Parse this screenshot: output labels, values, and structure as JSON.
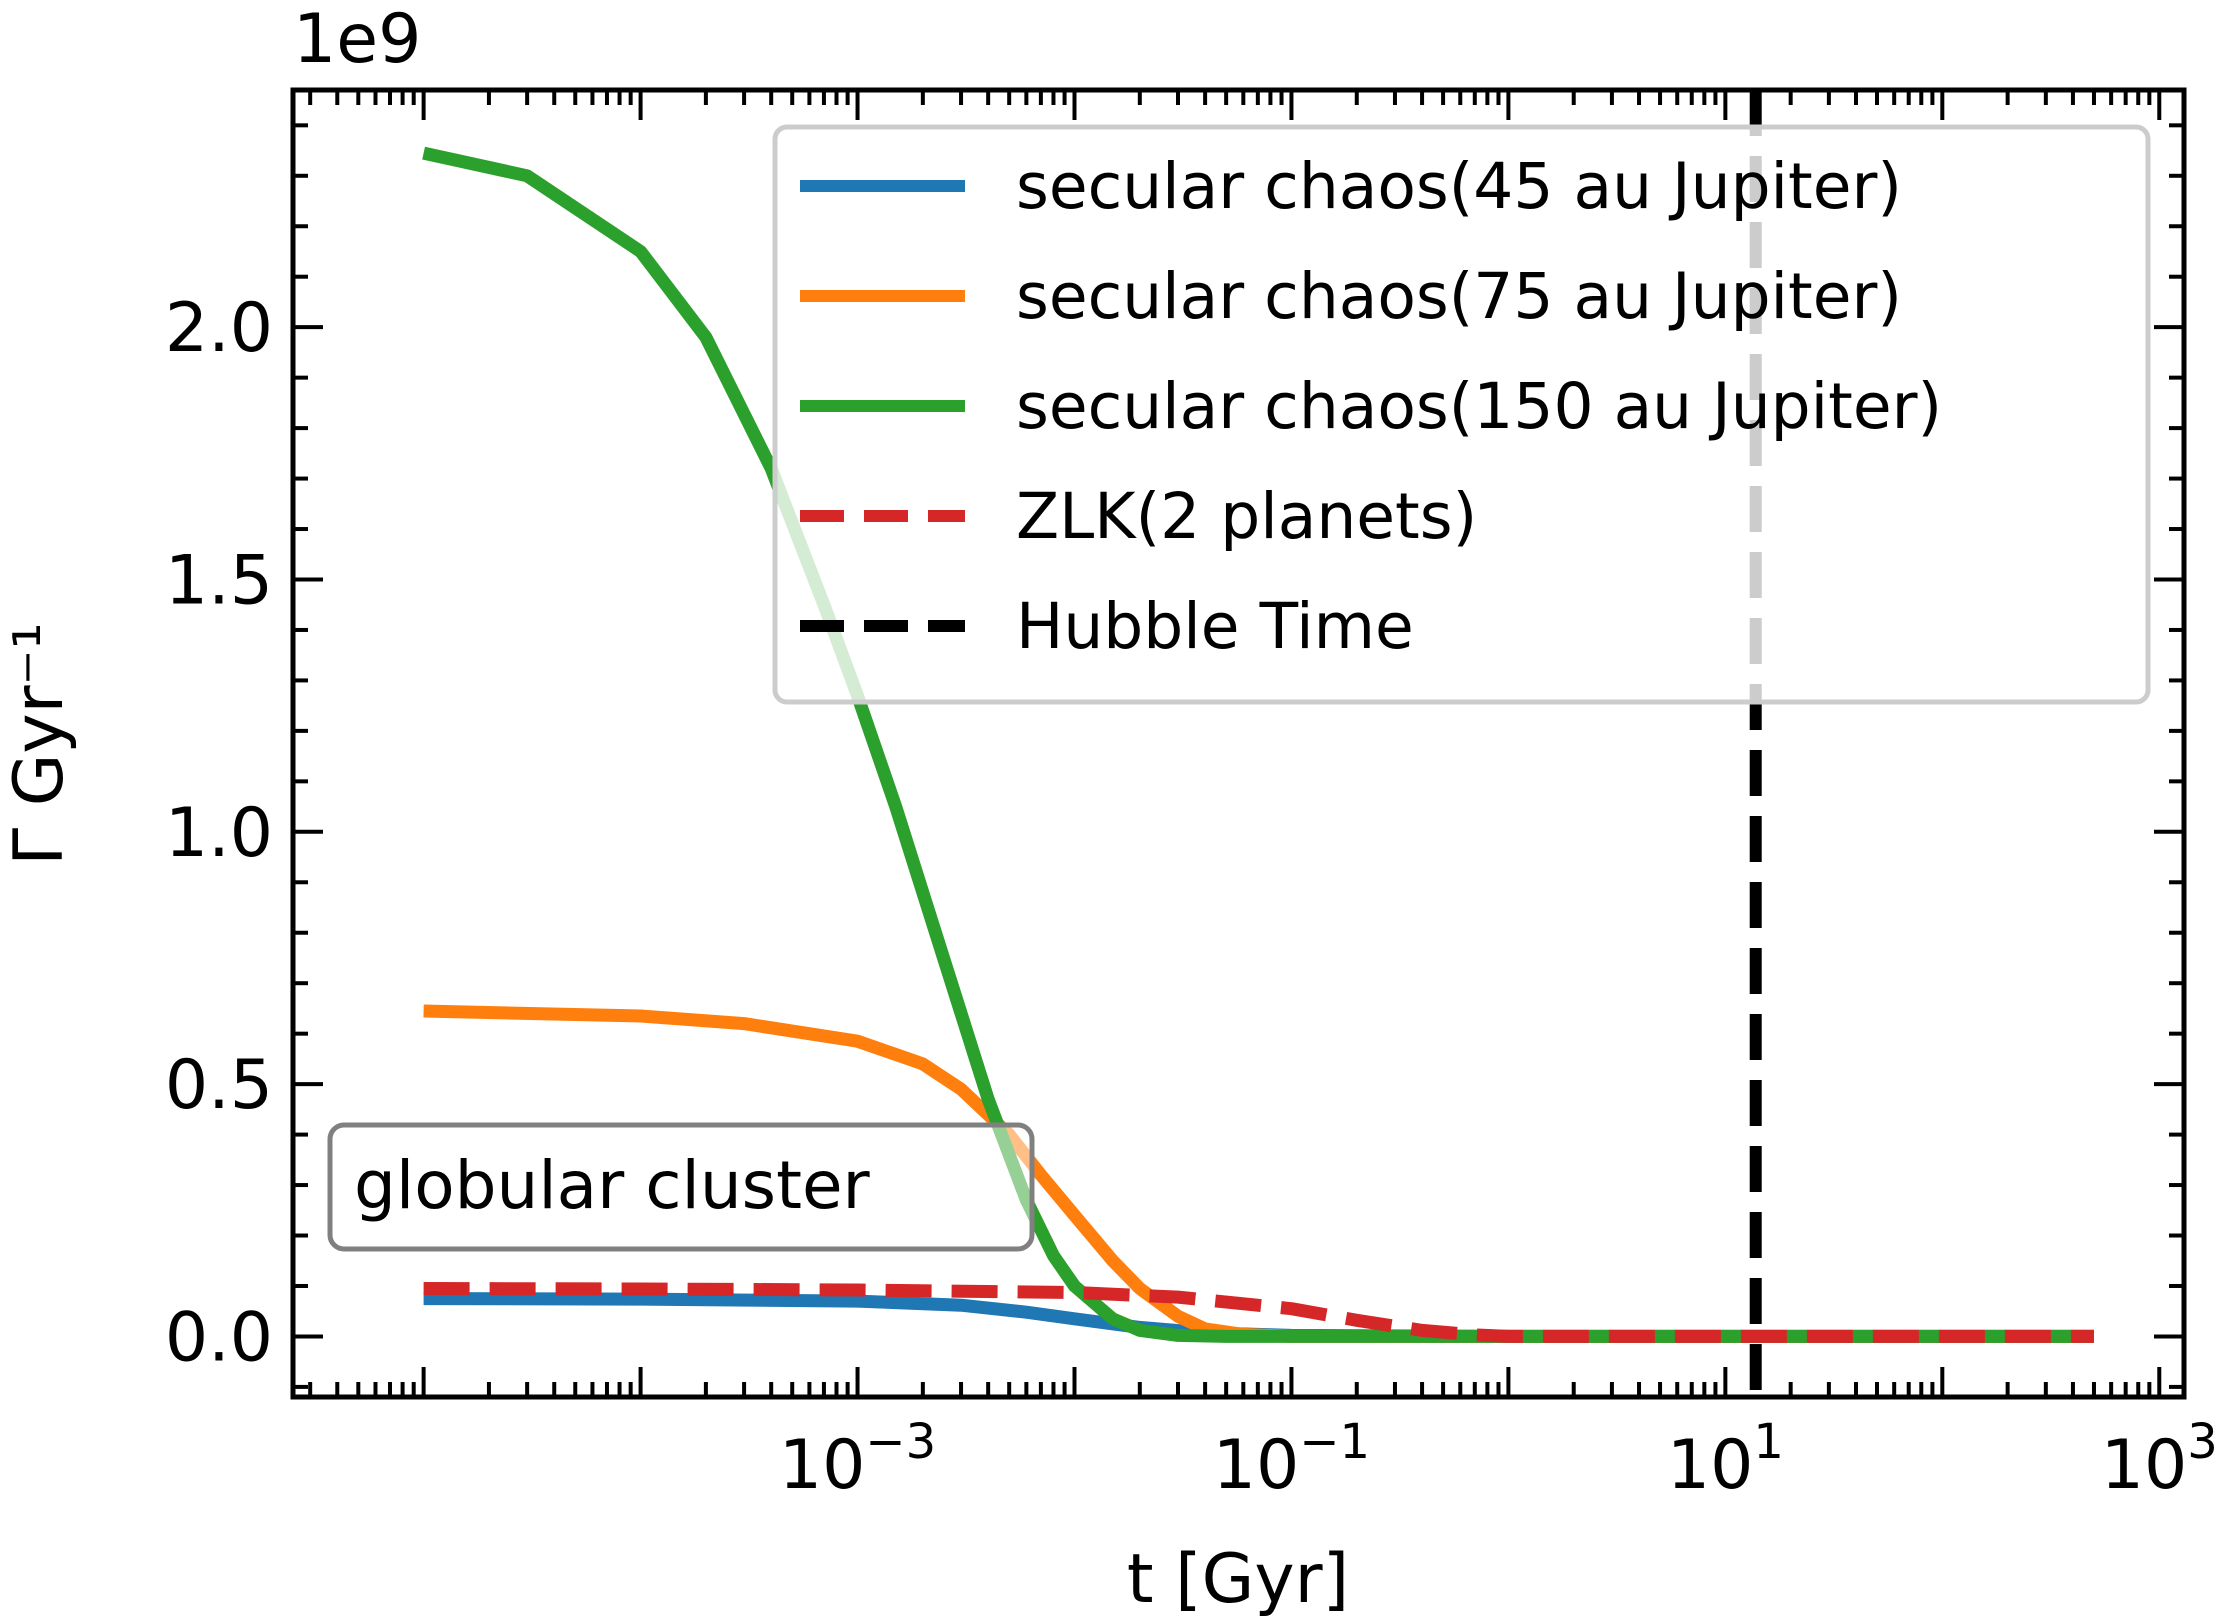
{
  "chart_data": {
    "type": "line",
    "xscale": "log",
    "xlabel": "t [Gyr]",
    "ylabel": "Γ Gyr⁻¹",
    "y_offset_label": "1e9",
    "xlim": [
      2.5e-06,
      1300
    ],
    "ylim": [
      -0.12,
      2.47
    ],
    "y_scale_factor": 1000000000,
    "xticks": [
      {
        "value": 0.001,
        "base": "10",
        "exp": "−3"
      },
      {
        "value": 0.1,
        "base": "10",
        "exp": "−1"
      },
      {
        "value": 10,
        "base": "10",
        "exp": "1"
      },
      {
        "value": 1000,
        "base": "10",
        "exp": "3"
      }
    ],
    "yticks": [
      {
        "value": 0.0,
        "label": "0.0"
      },
      {
        "value": 0.5,
        "label": "0.5"
      },
      {
        "value": 1.0,
        "label": "1.0"
      },
      {
        "value": 1.5,
        "label": "1.5"
      },
      {
        "value": 2.0,
        "label": "2.0"
      }
    ],
    "grid": false,
    "legend_position": "upper right",
    "series": [
      {
        "name": "secular chaos(45 au Jupiter)",
        "color": "#1f77b4",
        "style": "solid",
        "points": [
          [
            1e-05,
            0.075
          ],
          [
            0.0001,
            0.074
          ],
          [
            0.001,
            0.07
          ],
          [
            0.003,
            0.062
          ],
          [
            0.006,
            0.048
          ],
          [
            0.01,
            0.035
          ],
          [
            0.02,
            0.018
          ],
          [
            0.04,
            0.007
          ],
          [
            0.1,
            0.002
          ],
          [
            1,
            0.0
          ],
          [
            500,
            0.0
          ]
        ]
      },
      {
        "name": "secular chaos(75 au Jupiter)",
        "color": "#ff7f0e",
        "style": "solid",
        "points": [
          [
            1e-05,
            0.645
          ],
          [
            0.0001,
            0.635
          ],
          [
            0.0003,
            0.62
          ],
          [
            0.001,
            0.585
          ],
          [
            0.002,
            0.54
          ],
          [
            0.003,
            0.49
          ],
          [
            0.005,
            0.4
          ],
          [
            0.007,
            0.32
          ],
          [
            0.01,
            0.24
          ],
          [
            0.015,
            0.15
          ],
          [
            0.02,
            0.095
          ],
          [
            0.03,
            0.04
          ],
          [
            0.04,
            0.015
          ],
          [
            0.06,
            0.004
          ],
          [
            0.1,
            0.0
          ],
          [
            500,
            0.0
          ]
        ]
      },
      {
        "name": "secular chaos(150 au Jupiter)",
        "color": "#2ca02c",
        "style": "solid",
        "points": [
          [
            1e-05,
            2.345
          ],
          [
            3e-05,
            2.3
          ],
          [
            0.0001,
            2.15
          ],
          [
            0.0002,
            1.98
          ],
          [
            0.0004,
            1.72
          ],
          [
            0.0007,
            1.45
          ],
          [
            0.001,
            1.27
          ],
          [
            0.0015,
            1.05
          ],
          [
            0.002,
            0.88
          ],
          [
            0.003,
            0.64
          ],
          [
            0.004,
            0.47
          ],
          [
            0.006,
            0.27
          ],
          [
            0.008,
            0.16
          ],
          [
            0.01,
            0.1
          ],
          [
            0.015,
            0.035
          ],
          [
            0.02,
            0.012
          ],
          [
            0.03,
            0.002
          ],
          [
            0.05,
            0.0
          ],
          [
            500,
            0.0
          ]
        ]
      },
      {
        "name": "ZLK(2 planets)",
        "color": "#d62728",
        "style": "dashed",
        "points": [
          [
            1e-05,
            0.095
          ],
          [
            0.0001,
            0.094
          ],
          [
            0.001,
            0.092
          ],
          [
            0.01,
            0.087
          ],
          [
            0.03,
            0.078
          ],
          [
            0.1,
            0.055
          ],
          [
            0.2,
            0.032
          ],
          [
            0.4,
            0.012
          ],
          [
            0.7,
            0.003
          ],
          [
            1,
            0.0
          ],
          [
            500,
            0.0
          ]
        ]
      },
      {
        "name": "Hubble Time",
        "color": "#000000",
        "style": "dashed",
        "vline_x": 13.8
      }
    ],
    "annotation": "globular cluster"
  }
}
